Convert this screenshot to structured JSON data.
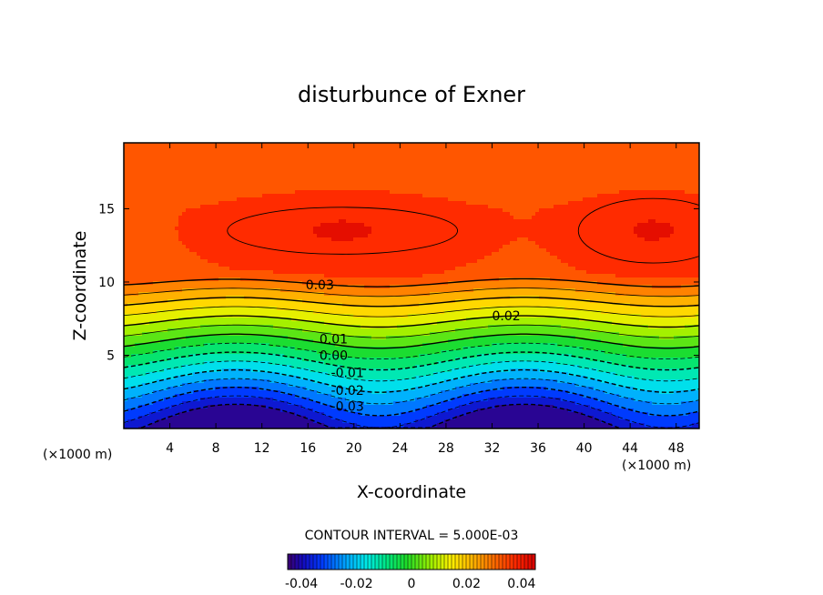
{
  "chart_data": {
    "type": "contour",
    "title": "disturbunce of Exner",
    "xlabel": "X-coordinate",
    "ylabel": "Z-coordinate",
    "x_unit": "(×1000 m)",
    "y_unit": "(×1000 m)",
    "xlim": [
      0,
      50
    ],
    "ylim": [
      0,
      19.5
    ],
    "x_ticks": [
      4,
      8,
      12,
      16,
      20,
      24,
      28,
      32,
      36,
      40,
      44,
      48
    ],
    "y_ticks": [
      5,
      10,
      15
    ],
    "contour_interval_text": "CONTOUR INTERVAL = 5.000E-03",
    "contour_interval": 0.005,
    "value_range": [
      -0.045,
      0.045
    ],
    "contour_labels": [
      {
        "text": "0.03",
        "x": 15.8,
        "z": 9.5
      },
      {
        "text": "0.02",
        "x": 32.0,
        "z": 7.4
      },
      {
        "text": "0.01",
        "x": 17.0,
        "z": 5.8
      },
      {
        "text": "0.00",
        "x": 17.0,
        "z": 4.7
      },
      {
        "text": "-0.01",
        "x": 18.0,
        "z": 3.5
      },
      {
        "text": "-0.02",
        "x": 18.0,
        "z": 2.3
      },
      {
        "text": "-0.03",
        "x": 18.0,
        "z": 1.2
      }
    ],
    "colorbar": {
      "ticks": [
        "-0.04",
        "-0.02",
        "0",
        "0.02",
        "0.04"
      ],
      "tick_values": [
        -0.04,
        -0.02,
        0,
        0.02,
        0.04
      ]
    }
  }
}
